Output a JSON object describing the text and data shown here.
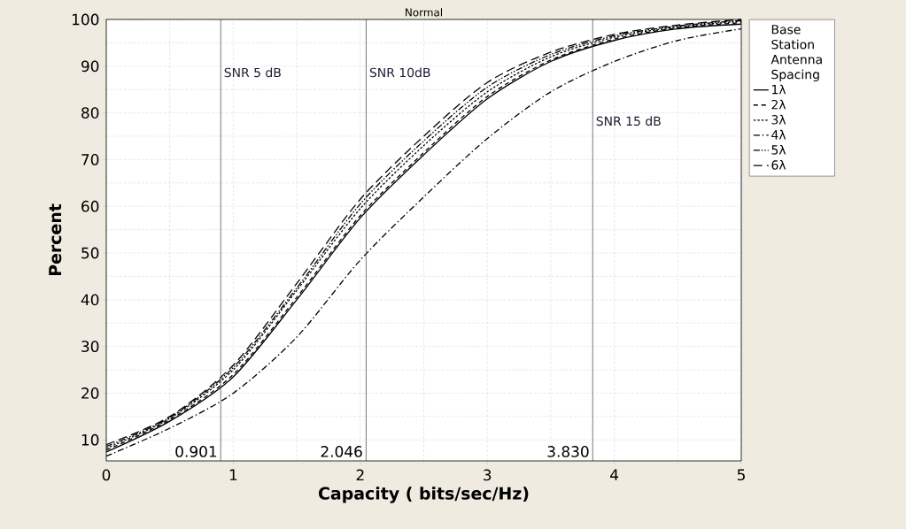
{
  "chart_data": {
    "type": "line",
    "title": "Normal",
    "xlabel": "Capacity ( bits/sec/Hz)",
    "ylabel": "Percent",
    "legend_title": "Base Station Antenna Spacing",
    "x": [
      0,
      0.5,
      1,
      1.5,
      2,
      2.5,
      3,
      3.5,
      4,
      4.5,
      5
    ],
    "series": [
      {
        "name": "1λ",
        "color": "#000000",
        "line_style": "solid",
        "values": [
          7.4,
          14,
          23.5,
          40,
          57.5,
          71,
          83,
          91,
          95.5,
          98,
          99
        ]
      },
      {
        "name": "2λ",
        "color": "#000000",
        "line_style": "dashed",
        "values": [
          7.8,
          14.3,
          24,
          40.5,
          58,
          71.5,
          83.5,
          91.3,
          95.8,
          98.2,
          99.3
        ]
      },
      {
        "name": "3λ",
        "color": "#000000",
        "line_style": "dotted",
        "values": [
          8.2,
          14.6,
          25,
          42,
          59.5,
          73,
          84.5,
          92,
          96.2,
          98.4,
          99.6
        ]
      },
      {
        "name": "4λ",
        "color": "#000000",
        "line_style": "dashdot",
        "values": [
          6.5,
          12.5,
          20,
          32,
          48.5,
          62,
          74.5,
          84.5,
          91,
          95.5,
          98
        ]
      },
      {
        "name": "5λ",
        "color": "#000000",
        "line_style": "dashdotdot",
        "values": [
          8.6,
          14.8,
          25.5,
          42.5,
          60.5,
          74,
          85.5,
          92.5,
          96.5,
          98.6,
          99.8
        ]
      },
      {
        "name": "6λ",
        "color": "#000000",
        "line_style": "longdash",
        "values": [
          9,
          15,
          26,
          43.5,
          61.5,
          75,
          86.5,
          93,
          96.8,
          98.8,
          100
        ]
      }
    ],
    "xlim": [
      0,
      5
    ],
    "ylim": [
      5.5,
      100
    ],
    "xticks": [
      0,
      1,
      2,
      3,
      4,
      5
    ],
    "yticks": [
      10,
      20,
      30,
      40,
      50,
      60,
      70,
      80,
      90,
      100
    ],
    "grid": true,
    "legend": "right",
    "marker": "none",
    "ref_lines": [
      {
        "axis": "x",
        "value": 0.901,
        "label": "SNR 5 dB",
        "color": "#555555"
      },
      {
        "axis": "x",
        "value": 2.046,
        "label": "SNR 10dB",
        "color": "#555555"
      },
      {
        "axis": "x",
        "value": 3.83,
        "label": "SNR 15 dB",
        "color": "#555555"
      }
    ],
    "annotations": [
      {
        "text": "0.901",
        "x": 0.901,
        "y": 7.5
      },
      {
        "text": "2.046",
        "x": 2.046,
        "y": 7.5
      },
      {
        "text": "3.830",
        "x": 3.83,
        "y": 7.5
      }
    ]
  }
}
